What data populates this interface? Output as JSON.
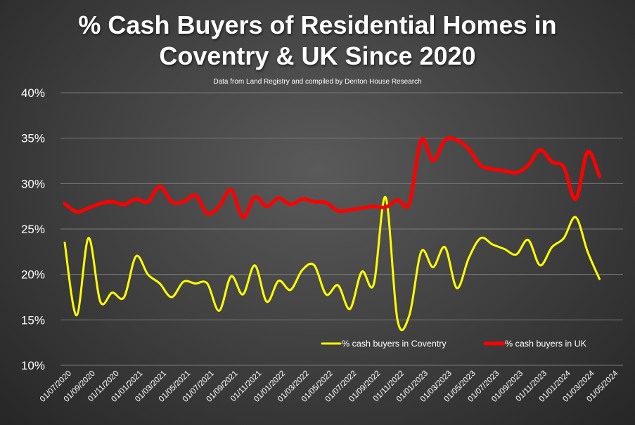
{
  "chart_data": {
    "type": "line",
    "title": [
      "% Cash Buyers of Residential Homes in",
      "Coventry & UK Since 2020"
    ],
    "subtitle": "Data from Land Registry and compiled by Denton House Research",
    "x_tick_labels": [
      "01/07/2020",
      "01/09/2020",
      "01/11/2020",
      "01/01/2021",
      "01/03/2021",
      "01/05/2021",
      "01/07/2021",
      "01/09/2021",
      "01/11/2021",
      "01/01/2022",
      "01/03/2022",
      "01/05/2022",
      "01/07/2022",
      "01/09/2022",
      "01/11/2022",
      "01/01/2023",
      "01/03/2023",
      "01/05/2023",
      "01/07/2023",
      "01/09/2023",
      "01/11/2023",
      "01/01/2024",
      "01/03/2024",
      "01/05/2024"
    ],
    "y_tick_labels": [
      "10%",
      "15%",
      "20%",
      "25%",
      "30%",
      "35%",
      "40%"
    ],
    "ylim": [
      10,
      40
    ],
    "grid": true,
    "legend_position": "bottom-right",
    "x_start": "2020-07",
    "series": [
      {
        "name": "% cash buyers in Coventry",
        "color": "#ffff00",
        "values": [
          23.5,
          15.5,
          24.0,
          17.0,
          18.0,
          17.5,
          22.0,
          20.0,
          19.0,
          17.5,
          19.2,
          19.0,
          19.0,
          16.0,
          19.8,
          17.8,
          21.0,
          17.0,
          19.3,
          18.3,
          20.5,
          21.0,
          17.8,
          18.8,
          16.2,
          20.3,
          18.9,
          28.5,
          15.0,
          15.5,
          22.5,
          20.8,
          23.0,
          18.5,
          21.8,
          24.0,
          23.3,
          22.8,
          22.2,
          23.8,
          21.0,
          23.0,
          24.0,
          26.3,
          22.5,
          19.5
        ]
      },
      {
        "name": "% cash buyers in UK",
        "color": "#ff0000",
        "values": [
          27.8,
          26.9,
          27.3,
          27.8,
          28.0,
          27.7,
          28.3,
          28.0,
          29.7,
          28.0,
          28.0,
          28.7,
          26.7,
          27.5,
          29.3,
          26.3,
          28.5,
          27.5,
          28.4,
          27.7,
          28.3,
          28.0,
          27.9,
          27.0,
          27.1,
          27.3,
          27.5,
          27.4,
          28.2,
          27.8,
          34.8,
          32.5,
          34.8,
          34.8,
          33.8,
          32.0,
          31.6,
          31.4,
          31.2,
          32.0,
          33.7,
          32.4,
          31.8,
          28.3,
          33.5,
          30.8
        ]
      }
    ]
  }
}
